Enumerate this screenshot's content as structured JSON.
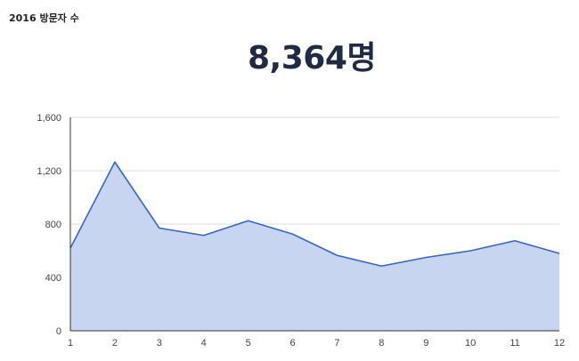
{
  "widget": {
    "title": "2016 방문자 수",
    "total_value": "8,364명"
  },
  "chart_data": {
    "type": "area",
    "title": "",
    "xlabel": "",
    "ylabel": "",
    "x": [
      1,
      2,
      3,
      4,
      5,
      6,
      7,
      8,
      9,
      10,
      11,
      12
    ],
    "series": [
      {
        "values": [
          620,
          1265,
          770,
          715,
          825,
          725,
          565,
          485,
          550,
          600,
          675,
          580
        ]
      }
    ],
    "ylim": [
      0,
      1600
    ],
    "yticks": [
      0,
      400,
      800,
      1200,
      1600
    ],
    "ytick_labels": [
      "0",
      "400",
      "800",
      "1,200",
      "1,600"
    ],
    "grid": true,
    "colors": {
      "line": "#3366cc",
      "fill": "#c5d3f0",
      "grid": "#dddddd"
    }
  }
}
